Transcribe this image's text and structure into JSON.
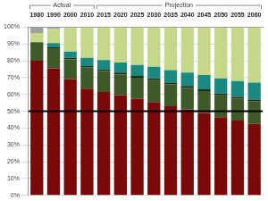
{
  "chart_data": {
    "type": "bar",
    "stacked": true,
    "categories": [
      "1980",
      "1990",
      "2000",
      "2010",
      "2015",
      "2020",
      "2025",
      "2030",
      "2035",
      "2040",
      "2045",
      "2050",
      "2055",
      "2060"
    ],
    "series": [
      {
        "color": "#7a0a0a",
        "values": [
          80,
          75.5,
          69,
          63.5,
          61.5,
          59.5,
          57.5,
          55.5,
          53,
          51,
          49,
          46.5,
          44.5,
          42.5
        ]
      },
      {
        "color": "#3d5a28",
        "values": [
          11,
          12,
          12,
          12.5,
          12.5,
          12.5,
          12.5,
          13,
          13,
          13,
          13,
          13,
          13,
          13.5
        ]
      },
      {
        "color": "#1e2d1e",
        "values": [
          0,
          0.5,
          0.8,
          0.8,
          0.9,
          1,
          1,
          1,
          1,
          1,
          1,
          1,
          1,
          1
        ]
      },
      {
        "color": "#1a8a80",
        "values": [
          0,
          2.5,
          3.7,
          5,
          5.5,
          6,
          6.5,
          7,
          7.5,
          8,
          8.5,
          9,
          9.5,
          10
        ]
      },
      {
        "color": "#c5d88a",
        "values": [
          5.5,
          8.5,
          14.5,
          18.2,
          19.6,
          21,
          22.5,
          23.5,
          25.5,
          27,
          28.5,
          30.5,
          32,
          33
        ]
      },
      {
        "color": "#a0a0a0",
        "values": [
          3.5,
          1,
          0,
          0,
          0,
          0,
          0,
          0,
          0,
          0,
          0,
          0,
          0,
          0
        ]
      }
    ],
    "ylim": [
      0,
      100
    ],
    "yticks": [
      {
        "value": 0,
        "label": "0%"
      },
      {
        "value": 10,
        "label": "10%"
      },
      {
        "value": 20,
        "label": "20%"
      },
      {
        "value": 30,
        "label": "30%"
      },
      {
        "value": 40,
        "label": "40%"
      },
      {
        "value": 50,
        "label": "50%"
      },
      {
        "value": 60,
        "label": "60%"
      },
      {
        "value": 70,
        "label": "70%"
      },
      {
        "value": 80,
        "label": "80%"
      },
      {
        "value": 90,
        "label": "90%"
      },
      {
        "value": 100,
        "label": "100%"
      }
    ],
    "grid": true,
    "annotations": [
      {
        "text": "Actual",
        "from": "1980",
        "to": "2010"
      },
      {
        "text": "Projection",
        "from": "2015",
        "to": "2060"
      }
    ],
    "reference_lines": [
      50
    ]
  }
}
